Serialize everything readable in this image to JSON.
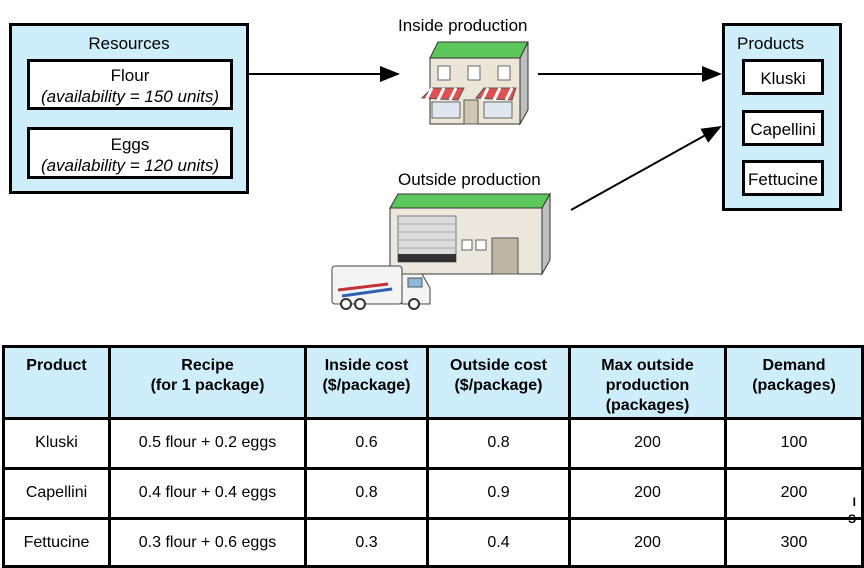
{
  "resources": {
    "title": "Resources",
    "items": [
      {
        "name": "Flour",
        "availability": "(availability = 150 units)"
      },
      {
        "name": "Eggs",
        "availability": "(availability = 120 units)"
      }
    ]
  },
  "inside_label": "Inside production",
  "outside_label": "Outside production",
  "products": {
    "title": "Products",
    "items": [
      "Kluski",
      "Capellini",
      "Fettucine"
    ]
  },
  "table": {
    "headers": [
      [
        "Product"
      ],
      [
        "Recipe",
        "(for 1 package)"
      ],
      [
        "Inside cost",
        "($/package)"
      ],
      [
        "Outside cost",
        "($/package)"
      ],
      [
        "Max outside",
        "production",
        "(packages)"
      ],
      [
        "Demand",
        "(packages)"
      ]
    ],
    "rows": [
      [
        "Kluski",
        "0.5 flour + 0.2 eggs",
        "0.6",
        "0.8",
        "200",
        "100"
      ],
      [
        "Capellini",
        "0.4 flour + 0.4 eggs",
        "0.8",
        "0.9",
        "200",
        "200"
      ],
      [
        "Fettucine",
        "0.3 flour + 0.6 eggs",
        "0.3",
        "0.4",
        "200",
        "300"
      ]
    ]
  },
  "edge_marks": [
    "I",
    "S"
  ],
  "colors": {
    "panel": "#cdeefa",
    "roof": "#5cc85c"
  }
}
